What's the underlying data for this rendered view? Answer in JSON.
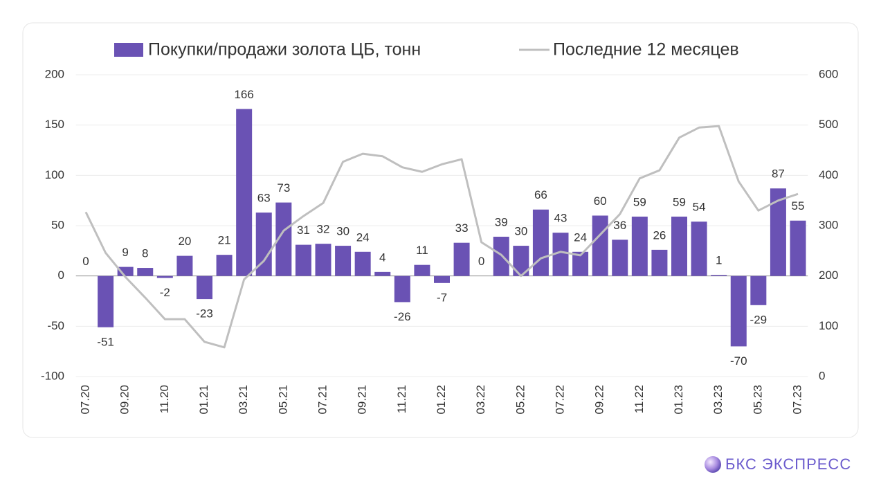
{
  "chart_data": {
    "type": "bar",
    "categories": [
      "07.20",
      null,
      "09.20",
      null,
      "11.20",
      null,
      "01.21",
      null,
      "03.21",
      null,
      "05.21",
      null,
      "07.21",
      null,
      "09.21",
      null,
      "11.21",
      null,
      "01.22",
      null,
      "03.22",
      null,
      "05.22",
      null,
      "07.22",
      null,
      "09.22",
      null,
      "11.22",
      null,
      "01.23",
      null,
      "03.23",
      null,
      "05.23",
      null,
      "07.23"
    ],
    "series": [
      {
        "name": "Покупки/продажи золота ЦБ, тонн",
        "type": "bar",
        "color": "#6a52b4",
        "values": [
          0,
          -51,
          9,
          8,
          -2,
          20,
          -23,
          21,
          166,
          63,
          73,
          31,
          32,
          30,
          24,
          4,
          -26,
          11,
          -7,
          33,
          0,
          39,
          30,
          66,
          43,
          24,
          60,
          36,
          59,
          26,
          59,
          54,
          1,
          -70,
          -29,
          87,
          55
        ]
      },
      {
        "name": "Последние 12 месяцев",
        "type": "line",
        "axis": "y2",
        "color": "#bfbfbf",
        "values": [
          327,
          246,
          198,
          157,
          114,
          114,
          69,
          58,
          193,
          230,
          290,
          319,
          345,
          427,
          443,
          438,
          416,
          407,
          422,
          432,
          267,
          242,
          200,
          235,
          248,
          241,
          282,
          323,
          394,
          410,
          475,
          495,
          498,
          388,
          330,
          350,
          363
        ]
      }
    ],
    "ylim": [
      -100,
      200
    ],
    "yticks": [
      -100,
      -50,
      0,
      50,
      100,
      150,
      200
    ],
    "y2lim": [
      0,
      600
    ],
    "y2ticks": [
      0,
      100,
      200,
      300,
      400,
      500,
      600
    ],
    "grid": true,
    "legend": "top"
  },
  "brand": "БКС ЭКСПРЕСС"
}
